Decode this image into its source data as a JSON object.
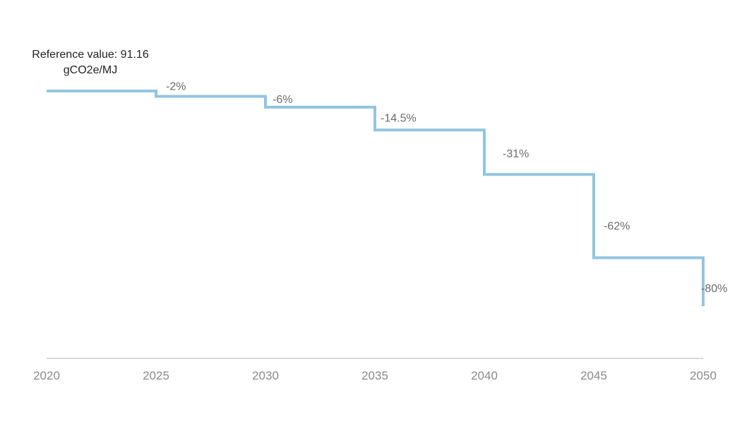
{
  "chart_data": {
    "type": "line",
    "step": true,
    "x": [
      2020,
      2025,
      2030,
      2035,
      2040,
      2045,
      2050
    ],
    "reduction_pct": [
      0,
      -2,
      -6,
      -14.5,
      -31,
      -62,
      -80
    ],
    "step_labels": [
      "",
      "-2%",
      "-6%",
      "-14.5%",
      "-31%",
      "-62%",
      "-80%"
    ],
    "reference_value": 91.16,
    "reference_text": [
      "Reference value: 91.16",
      "gCO2e/MJ"
    ],
    "x_ticks": [
      "2020",
      "2025",
      "2030",
      "2035",
      "2040",
      "2045",
      "2050"
    ],
    "line_color": "#92c5de",
    "axis_color": "#d9d9d9",
    "grid": false,
    "legend": false
  }
}
